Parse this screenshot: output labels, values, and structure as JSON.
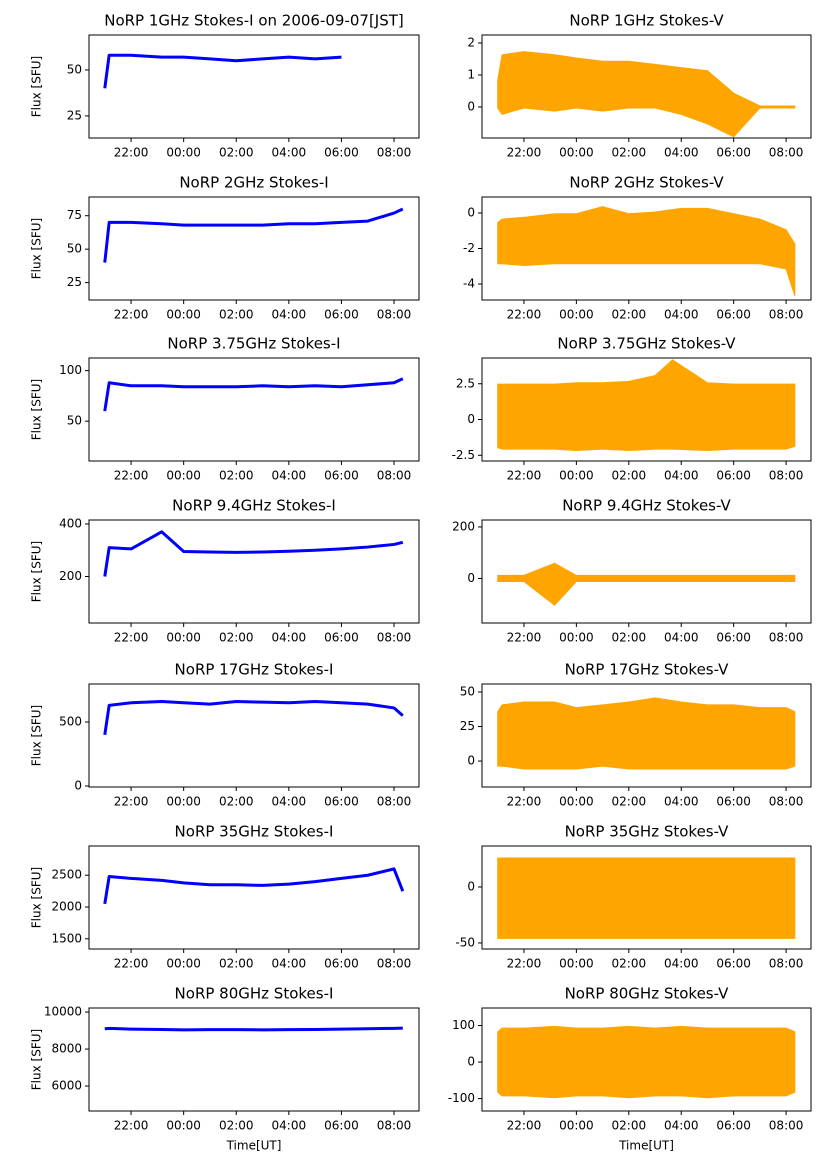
{
  "chart_data": [
    {
      "type": "line",
      "title": "NoRP 1GHz Stokes-I on 2006-09-07[JST]",
      "ylabel": "Flux [SFU]",
      "color": "#0000ff",
      "x": [
        "21:00",
        "21:10",
        "22:00",
        "23:10",
        "00:00",
        "01:00",
        "02:00",
        "03:00",
        "04:00",
        "05:00",
        "06:00"
      ],
      "values": [
        40,
        58,
        58,
        57,
        57,
        56,
        55,
        56,
        57,
        56,
        57
      ],
      "xlim": [
        "20:24",
        "08:57"
      ],
      "xticks": [
        "22:00",
        "00:00",
        "02:00",
        "04:00",
        "06:00",
        "08:00"
      ],
      "ylim": [
        13,
        69
      ],
      "yticks": [
        25,
        50
      ]
    },
    {
      "type": "band",
      "title": "NoRP 1GHz Stokes-V",
      "color": "#ffa500",
      "x": [
        "21:00",
        "21:10",
        "22:00",
        "23:10",
        "00:00",
        "01:00",
        "02:00",
        "03:00",
        "04:00",
        "05:00",
        "06:00",
        "07:00",
        "08:00",
        "08:20"
      ],
      "low": [
        0,
        -0.2,
        0,
        -0.1,
        0,
        -0.1,
        0,
        0,
        -0.2,
        -0.5,
        -0.9,
        0,
        0,
        0
      ],
      "high": [
        0.8,
        1.6,
        1.7,
        1.6,
        1.5,
        1.4,
        1.4,
        1.3,
        1.2,
        1.1,
        0.4,
        0,
        0,
        0
      ],
      "xlim": [
        "20:24",
        "08:57"
      ],
      "xticks": [
        "22:00",
        "00:00",
        "02:00",
        "04:00",
        "06:00",
        "08:00"
      ],
      "ylim": [
        -0.97,
        2.25
      ],
      "yticks": [
        0,
        1,
        2
      ]
    },
    {
      "type": "line",
      "title": "NoRP 2GHz Stokes-I",
      "ylabel": "Flux [SFU]",
      "color": "#0000ff",
      "x": [
        "21:00",
        "21:10",
        "22:00",
        "23:10",
        "00:00",
        "01:00",
        "02:00",
        "03:00",
        "04:00",
        "05:00",
        "06:00",
        "07:00",
        "08:00",
        "08:20"
      ],
      "values": [
        40,
        70,
        70,
        69,
        68,
        68,
        68,
        68,
        69,
        69,
        70,
        71,
        77,
        80
      ],
      "xlim": [
        "20:24",
        "08:57"
      ],
      "xticks": [
        "22:00",
        "00:00",
        "02:00",
        "04:00",
        "06:00",
        "08:00"
      ],
      "ylim": [
        12,
        89
      ],
      "yticks": [
        25,
        50,
        75
      ]
    },
    {
      "type": "band",
      "title": "NoRP 2GHz Stokes-V",
      "color": "#ffa500",
      "x": [
        "21:00",
        "21:10",
        "22:00",
        "23:10",
        "00:00",
        "01:00",
        "02:00",
        "03:00",
        "04:00",
        "05:00",
        "06:00",
        "07:00",
        "08:00",
        "08:20"
      ],
      "low": [
        -2.8,
        -2.8,
        -2.9,
        -2.8,
        -2.8,
        -2.8,
        -2.8,
        -2.8,
        -2.8,
        -2.8,
        -2.8,
        -2.8,
        -3.1,
        -4.6
      ],
      "high": [
        -0.6,
        -0.4,
        -0.3,
        -0.1,
        -0.1,
        0.3,
        -0.1,
        0,
        0.2,
        0.2,
        -0.1,
        -0.4,
        -1,
        -1.8
      ],
      "xlim": [
        "20:24",
        "08:57"
      ],
      "xticks": [
        "22:00",
        "00:00",
        "02:00",
        "04:00",
        "06:00",
        "08:00"
      ],
      "ylim": [
        -4.9,
        0.9
      ],
      "yticks": [
        -4,
        -2,
        0
      ]
    },
    {
      "type": "line",
      "title": "NoRP 3.75GHz Stokes-I",
      "ylabel": "Flux [SFU]",
      "color": "#0000ff",
      "x": [
        "21:00",
        "21:10",
        "22:00",
        "23:10",
        "00:00",
        "01:00",
        "02:00",
        "03:00",
        "04:00",
        "05:00",
        "06:00",
        "07:00",
        "08:00",
        "08:20"
      ],
      "values": [
        60,
        88,
        85,
        85,
        84,
        84,
        84,
        85,
        84,
        85,
        84,
        86,
        88,
        92
      ],
      "xlim": [
        "20:24",
        "08:57"
      ],
      "xticks": [
        "22:00",
        "00:00",
        "02:00",
        "04:00",
        "06:00",
        "08:00"
      ],
      "ylim": [
        10.6,
        112.5
      ],
      "yticks": [
        50,
        100
      ]
    },
    {
      "type": "band",
      "title": "NoRP 3.75GHz Stokes-V",
      "color": "#ffa500",
      "x": [
        "21:00",
        "21:10",
        "22:00",
        "23:10",
        "00:00",
        "01:00",
        "02:00",
        "03:00",
        "03:40",
        "05:00",
        "06:00",
        "07:00",
        "08:00",
        "08:20"
      ],
      "low": [
        -1.9,
        -2,
        -2,
        -2,
        -2.1,
        -2,
        -2.1,
        -2,
        -2,
        -2.1,
        -2,
        -2,
        -2,
        -1.8
      ],
      "high": [
        2.4,
        2.4,
        2.4,
        2.4,
        2.5,
        2.5,
        2.6,
        3,
        4.1,
        2.5,
        2.4,
        2.4,
        2.4,
        2.4
      ],
      "xlim": [
        "20:24",
        "08:57"
      ],
      "xticks": [
        "22:00",
        "00:00",
        "02:00",
        "04:00",
        "06:00",
        "08:00"
      ],
      "ylim": [
        -2.9,
        4.3
      ],
      "yticks": [
        -2.5,
        0.0,
        2.5
      ]
    },
    {
      "type": "line",
      "title": "NoRP 9.4GHz Stokes-I",
      "ylabel": "Flux [SFU]",
      "color": "#0000ff",
      "x": [
        "21:00",
        "21:10",
        "22:00",
        "23:10",
        "00:00",
        "01:00",
        "02:00",
        "03:00",
        "04:00",
        "05:00",
        "06:00",
        "07:00",
        "08:00",
        "08:20"
      ],
      "values": [
        200,
        310,
        305,
        370,
        295,
        293,
        292,
        293,
        296,
        300,
        305,
        312,
        322,
        330
      ],
      "xlim": [
        "20:24",
        "08:57"
      ],
      "xticks": [
        "22:00",
        "00:00",
        "02:00",
        "04:00",
        "06:00",
        "08:00"
      ],
      "ylim": [
        23,
        415
      ],
      "yticks": [
        200,
        400
      ]
    },
    {
      "type": "band",
      "title": "NoRP 9.4GHz Stokes-V",
      "color": "#ffa500",
      "x": [
        "21:00",
        "21:10",
        "22:00",
        "23:10",
        "00:00",
        "01:00",
        "02:00",
        "03:00",
        "04:00",
        "05:00",
        "06:00",
        "07:00",
        "08:00",
        "08:20"
      ],
      "low": [
        -8,
        -8,
        -8,
        -100,
        -8,
        -8,
        -8,
        -8,
        -8,
        -8,
        -8,
        -8,
        -8,
        -8
      ],
      "high": [
        8,
        8,
        8,
        55,
        8,
        8,
        8,
        8,
        8,
        8,
        8,
        8,
        8,
        8
      ],
      "xlim": [
        "20:24",
        "08:57"
      ],
      "xticks": [
        "22:00",
        "00:00",
        "02:00",
        "04:00",
        "06:00",
        "08:00"
      ],
      "ylim": [
        -173,
        227
      ],
      "yticks": [
        0,
        200
      ]
    },
    {
      "type": "line",
      "title": "NoRP 17GHz Stokes-I",
      "ylabel": "Flux [SFU]",
      "color": "#0000ff",
      "x": [
        "21:00",
        "21:10",
        "22:00",
        "23:10",
        "00:00",
        "01:00",
        "02:00",
        "03:00",
        "04:00",
        "05:00",
        "06:00",
        "07:00",
        "08:00",
        "08:20"
      ],
      "values": [
        400,
        630,
        650,
        660,
        650,
        640,
        660,
        655,
        650,
        660,
        650,
        640,
        610,
        550
      ],
      "xlim": [
        "20:24",
        "08:57"
      ],
      "xticks": [
        "22:00",
        "00:00",
        "02:00",
        "04:00",
        "06:00",
        "08:00"
      ],
      "ylim": [
        -8,
        797
      ],
      "yticks": [
        0,
        500
      ]
    },
    {
      "type": "band",
      "title": "NoRP 17GHz Stokes-V",
      "color": "#ffa500",
      "x": [
        "21:00",
        "21:10",
        "22:00",
        "23:10",
        "00:00",
        "01:00",
        "02:00",
        "03:00",
        "04:00",
        "05:00",
        "06:00",
        "07:00",
        "08:00",
        "08:20"
      ],
      "low": [
        -3,
        -3,
        -5,
        -5,
        -5,
        -3,
        -5,
        -5,
        -5,
        -5,
        -5,
        -5,
        -5,
        -3
      ],
      "high": [
        35,
        40,
        42,
        42,
        38,
        40,
        42,
        45,
        42,
        40,
        40,
        38,
        38,
        35
      ],
      "xlim": [
        "20:24",
        "08:57"
      ],
      "xticks": [
        "22:00",
        "00:00",
        "02:00",
        "04:00",
        "06:00",
        "08:00"
      ],
      "ylim": [
        -18.8,
        55.8
      ],
      "yticks": [
        0,
        25,
        50
      ]
    },
    {
      "type": "line",
      "title": "NoRP 35GHz Stokes-I",
      "ylabel": "Flux [SFU]",
      "color": "#0000ff",
      "x": [
        "21:00",
        "21:10",
        "22:00",
        "23:10",
        "00:00",
        "01:00",
        "02:00",
        "03:00",
        "04:00",
        "05:00",
        "06:00",
        "07:00",
        "08:00",
        "08:20"
      ],
      "values": [
        2050,
        2480,
        2450,
        2420,
        2380,
        2350,
        2350,
        2340,
        2360,
        2400,
        2450,
        2500,
        2600,
        2250
      ],
      "xlim": [
        "20:24",
        "08:57"
      ],
      "xticks": [
        "22:00",
        "00:00",
        "02:00",
        "04:00",
        "06:00",
        "08:00"
      ],
      "ylim": [
        1340,
        2960
      ],
      "yticks": [
        1500,
        2000,
        2500
      ]
    },
    {
      "type": "band",
      "title": "NoRP 35GHz Stokes-V",
      "color": "#ffa500",
      "x": [
        "21:00",
        "21:10",
        "22:00",
        "23:10",
        "00:00",
        "01:00",
        "02:00",
        "03:00",
        "04:00",
        "05:00",
        "06:00",
        "07:00",
        "08:00",
        "08:20"
      ],
      "low": [
        -45,
        -45,
        -45,
        -45,
        -45,
        -45,
        -45,
        -45,
        -45,
        -45,
        -45,
        -45,
        -45,
        -45
      ],
      "high": [
        25,
        25,
        25,
        25,
        25,
        25,
        25,
        25,
        25,
        25,
        25,
        25,
        25,
        25
      ],
      "xlim": [
        "20:24",
        "08:57"
      ],
      "xticks": [
        "22:00",
        "00:00",
        "02:00",
        "04:00",
        "06:00",
        "08:00"
      ],
      "ylim": [
        -55.4,
        36.6
      ],
      "yticks": [
        -50,
        0
      ]
    },
    {
      "type": "line",
      "title": "NoRP 80GHz Stokes-I",
      "ylabel": "Flux [SFU]",
      "xlabel": "Time[UT]",
      "color": "#0000ff",
      "x": [
        "21:00",
        "21:10",
        "22:00",
        "23:10",
        "00:00",
        "01:00",
        "02:00",
        "03:00",
        "04:00",
        "05:00",
        "06:00",
        "07:00",
        "08:00",
        "08:20"
      ],
      "values": [
        9100,
        9120,
        9080,
        9060,
        9040,
        9050,
        9050,
        9040,
        9050,
        9060,
        9080,
        9100,
        9120,
        9130
      ],
      "xlim": [
        "20:24",
        "08:57"
      ],
      "xticks": [
        "22:00",
        "00:00",
        "02:00",
        "04:00",
        "06:00",
        "08:00"
      ],
      "ylim": [
        4650,
        10220
      ],
      "yticks": [
        6000,
        8000,
        10000
      ]
    },
    {
      "type": "band",
      "title": "NoRP 80GHz Stokes-V",
      "xlabel": "Time[UT]",
      "color": "#ffa500",
      "x": [
        "21:00",
        "21:10",
        "22:00",
        "23:10",
        "00:00",
        "01:00",
        "02:00",
        "03:00",
        "04:00",
        "05:00",
        "06:00",
        "07:00",
        "08:00",
        "08:20"
      ],
      "low": [
        -80,
        -90,
        -90,
        -95,
        -90,
        -90,
        -95,
        -90,
        -90,
        -95,
        -90,
        -90,
        -90,
        -80
      ],
      "high": [
        80,
        90,
        90,
        95,
        90,
        90,
        95,
        90,
        95,
        90,
        90,
        90,
        90,
        80
      ],
      "xlim": [
        "20:24",
        "08:57"
      ],
      "xticks": [
        "22:00",
        "00:00",
        "02:00",
        "04:00",
        "06:00",
        "08:00"
      ],
      "ylim": [
        -134,
        148
      ],
      "yticks": [
        -100,
        0,
        100
      ]
    }
  ]
}
